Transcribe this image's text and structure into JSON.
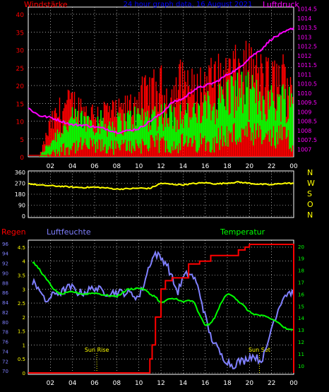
{
  "colors": {
    "red": "#ff0000",
    "blue": "#0000ff",
    "magenta": "#ff00ff",
    "green": "#00ff00",
    "yellow": "#ffff00",
    "lightblue": "#8080ff",
    "grid": "#ffffff"
  },
  "chart_data": [
    {
      "type": "bar",
      "title": "24 hour graph data, 16 August 2021",
      "left_label": "Windstärke",
      "right_label": "Luftdruck",
      "xticks": [
        "02",
        "04",
        "06",
        "08",
        "10",
        "12",
        "14",
        "16",
        "18",
        "20",
        "22",
        "00"
      ],
      "yticks_left": [
        "0",
        "5",
        "10",
        "15",
        "20",
        "25",
        "30",
        "35",
        "40"
      ],
      "yticks_right": [
        "1007",
        "1007.5",
        "1008",
        "1008.5",
        "1009",
        "1009.5",
        "1010",
        "1010.5",
        "1011",
        "1011.5",
        "1012",
        "1012.5",
        "1013",
        "1013.5",
        "1014",
        "1014.5"
      ],
      "ylim_left": [
        0,
        42
      ],
      "ylim_right": [
        1006.6,
        1014.6
      ],
      "x_hours": [
        0,
        24
      ],
      "pressure": {
        "hours": [
          0,
          1,
          2,
          3,
          4,
          5,
          6,
          7,
          8,
          9,
          10,
          11,
          12,
          13,
          14,
          15,
          16,
          17,
          18,
          19,
          20,
          21,
          22,
          23,
          24
        ],
        "values": [
          1009.2,
          1008.8,
          1008.7,
          1008.5,
          1008.3,
          1008.3,
          1008.2,
          1008.1,
          1007.9,
          1008.0,
          1008.1,
          1008.5,
          1008.9,
          1009.5,
          1009.7,
          1010.2,
          1010.4,
          1010.6,
          1011.0,
          1011.3,
          1011.9,
          1012.3,
          1012.9,
          1013.2,
          1013.5
        ]
      },
      "wind_gust_range": {
        "hours": [
          0,
          1,
          2,
          3,
          4,
          5,
          6,
          7,
          8,
          9,
          10,
          11,
          12,
          13,
          14,
          15,
          16,
          17,
          18,
          19,
          20,
          21,
          22,
          23,
          24
        ],
        "values": [
          0,
          0,
          12,
          18,
          20,
          17,
          16,
          17,
          16,
          18,
          22,
          24,
          26,
          22,
          30,
          24,
          28,
          29,
          30,
          32,
          33,
          30,
          28,
          30,
          29
        ]
      },
      "wind_mean_range": {
        "hours": [
          0,
          1,
          2,
          3,
          4,
          5,
          6,
          7,
          8,
          9,
          10,
          11,
          12,
          13,
          14,
          15,
          16,
          17,
          18,
          19,
          20,
          21,
          22,
          23,
          24
        ],
        "values": [
          0,
          0,
          4,
          8,
          10,
          10,
          10,
          9,
          9,
          10,
          11,
          11,
          12,
          11,
          12,
          11,
          13,
          15,
          17,
          18,
          17,
          16,
          15,
          16,
          15
        ]
      }
    },
    {
      "type": "line",
      "xticks": [
        "02",
        "04",
        "06",
        "08",
        "10",
        "12",
        "14",
        "16",
        "18",
        "20",
        "22",
        "00"
      ],
      "yticks": [
        "0",
        "90",
        "180",
        "270",
        "360"
      ],
      "right_labels": [
        "N",
        "W",
        "S",
        "O",
        "N"
      ],
      "ylim": [
        0,
        360
      ],
      "series": [
        {
          "name": "",
          "hours": [
            0,
            1,
            2,
            3,
            4,
            5,
            6,
            7,
            8,
            9,
            10,
            11,
            12,
            13,
            14,
            15,
            16,
            17,
            18,
            19,
            20,
            21,
            22,
            23,
            24
          ],
          "values": [
            268,
            255,
            250,
            245,
            238,
            235,
            238,
            232,
            222,
            225,
            230,
            228,
            270,
            262,
            258,
            268,
            275,
            265,
            272,
            280,
            270,
            262,
            258,
            270,
            270
          ]
        }
      ]
    },
    {
      "type": "line",
      "left_label": "Regen",
      "middle_label": "Luftfeuchte",
      "right_label": "Temperatur",
      "xticks": [
        "02",
        "04",
        "06",
        "08",
        "10",
        "12",
        "14",
        "16",
        "18",
        "20",
        "22",
        "00"
      ],
      "yticks_rain": [
        "0",
        "0.5",
        "1",
        "1.5",
        "2",
        "2.5",
        "3",
        "3.5",
        "4",
        "4.5"
      ],
      "yticks_humidity": [
        "70",
        "72",
        "74",
        "76",
        "78",
        "80",
        "82",
        "84",
        "86",
        "88",
        "90",
        "92",
        "94",
        "96"
      ],
      "yticks_temp": [
        "10",
        "11",
        "12",
        "13",
        "14",
        "15",
        "16",
        "17",
        "18",
        "19",
        "20"
      ],
      "ylim_rain": [
        0,
        4.7
      ],
      "ylim_humidity": [
        69.6,
        96.4
      ],
      "ylim_temp": [
        9.4,
        20.4
      ],
      "annotations": [
        {
          "text": "Sun Rise",
          "hour": 6.2
        },
        {
          "text": "Sun Set",
          "hour": 20.9
        }
      ],
      "series": [
        {
          "name": "Regen",
          "hours": [
            0,
            10.9,
            11.0,
            11.2,
            11.5,
            12.0,
            12.4,
            13.0,
            14.5,
            15.5,
            16.5,
            18.0,
            19.0,
            19.6,
            20.0,
            23.9,
            24.0
          ],
          "values": [
            0,
            0,
            0.5,
            1.0,
            2.0,
            3.0,
            3.3,
            3.4,
            3.9,
            4.0,
            4.2,
            4.2,
            4.4,
            4.5,
            4.6,
            4.6,
            0
          ]
        },
        {
          "name": "Luftfeuchte",
          "hours": [
            0,
            0.5,
            1.0,
            1.5,
            2.0,
            2.5,
            3.0,
            3.5,
            4.0,
            4.5,
            5.0,
            6.0,
            7.0,
            8.0,
            9.0,
            10.0,
            10.5,
            11.0,
            11.5,
            12.0,
            12.5,
            13.0,
            13.5,
            14.0,
            14.5,
            15.0,
            15.5,
            16.0,
            16.5,
            17.0,
            17.5,
            18.0,
            18.5,
            19.0,
            19.5,
            20.0,
            20.5,
            21.0,
            21.5,
            22.0,
            22.5,
            23.0,
            23.5,
            24.0
          ],
          "values": [
            84,
            88,
            87,
            84,
            85,
            86,
            86,
            87,
            87,
            86,
            86,
            87,
            86,
            86,
            86,
            85,
            88,
            92,
            94,
            93,
            92,
            89,
            86,
            89,
            90,
            89,
            86,
            81,
            77,
            75,
            73,
            72,
            71,
            72,
            72,
            73,
            73,
            72,
            74,
            79,
            82,
            85,
            86,
            86
          ]
        },
        {
          "name": "Temperatur",
          "hours": [
            0,
            0.5,
            1.0,
            1.5,
            2.0,
            2.5,
            3.0,
            4.0,
            5.0,
            6.0,
            7.0,
            8.0,
            9.0,
            10.0,
            10.5,
            11.0,
            11.5,
            12.0,
            12.5,
            13.0,
            13.5,
            14.0,
            14.5,
            15.0,
            15.5,
            16.0,
            16.5,
            17.0,
            17.5,
            18.0,
            18.5,
            19.0,
            19.5,
            20.0,
            20.5,
            21.0,
            21.5,
            22.0,
            22.5,
            23.0,
            23.5,
            24.0
          ],
          "values": [
            18.5,
            18.6,
            18.1,
            17.4,
            16.8,
            16.2,
            16.0,
            16.2,
            16.0,
            16.1,
            15.9,
            15.8,
            16.4,
            16.5,
            16.4,
            16.0,
            15.8,
            15.2,
            15.5,
            15.6,
            15.6,
            15.3,
            15.5,
            15.3,
            14.2,
            13.4,
            13.5,
            14.3,
            15.4,
            16.0,
            15.9,
            15.4,
            15.0,
            14.5,
            14.3,
            14.2,
            14.1,
            13.9,
            13.7,
            13.3,
            13.0,
            13.0
          ]
        }
      ]
    }
  ]
}
